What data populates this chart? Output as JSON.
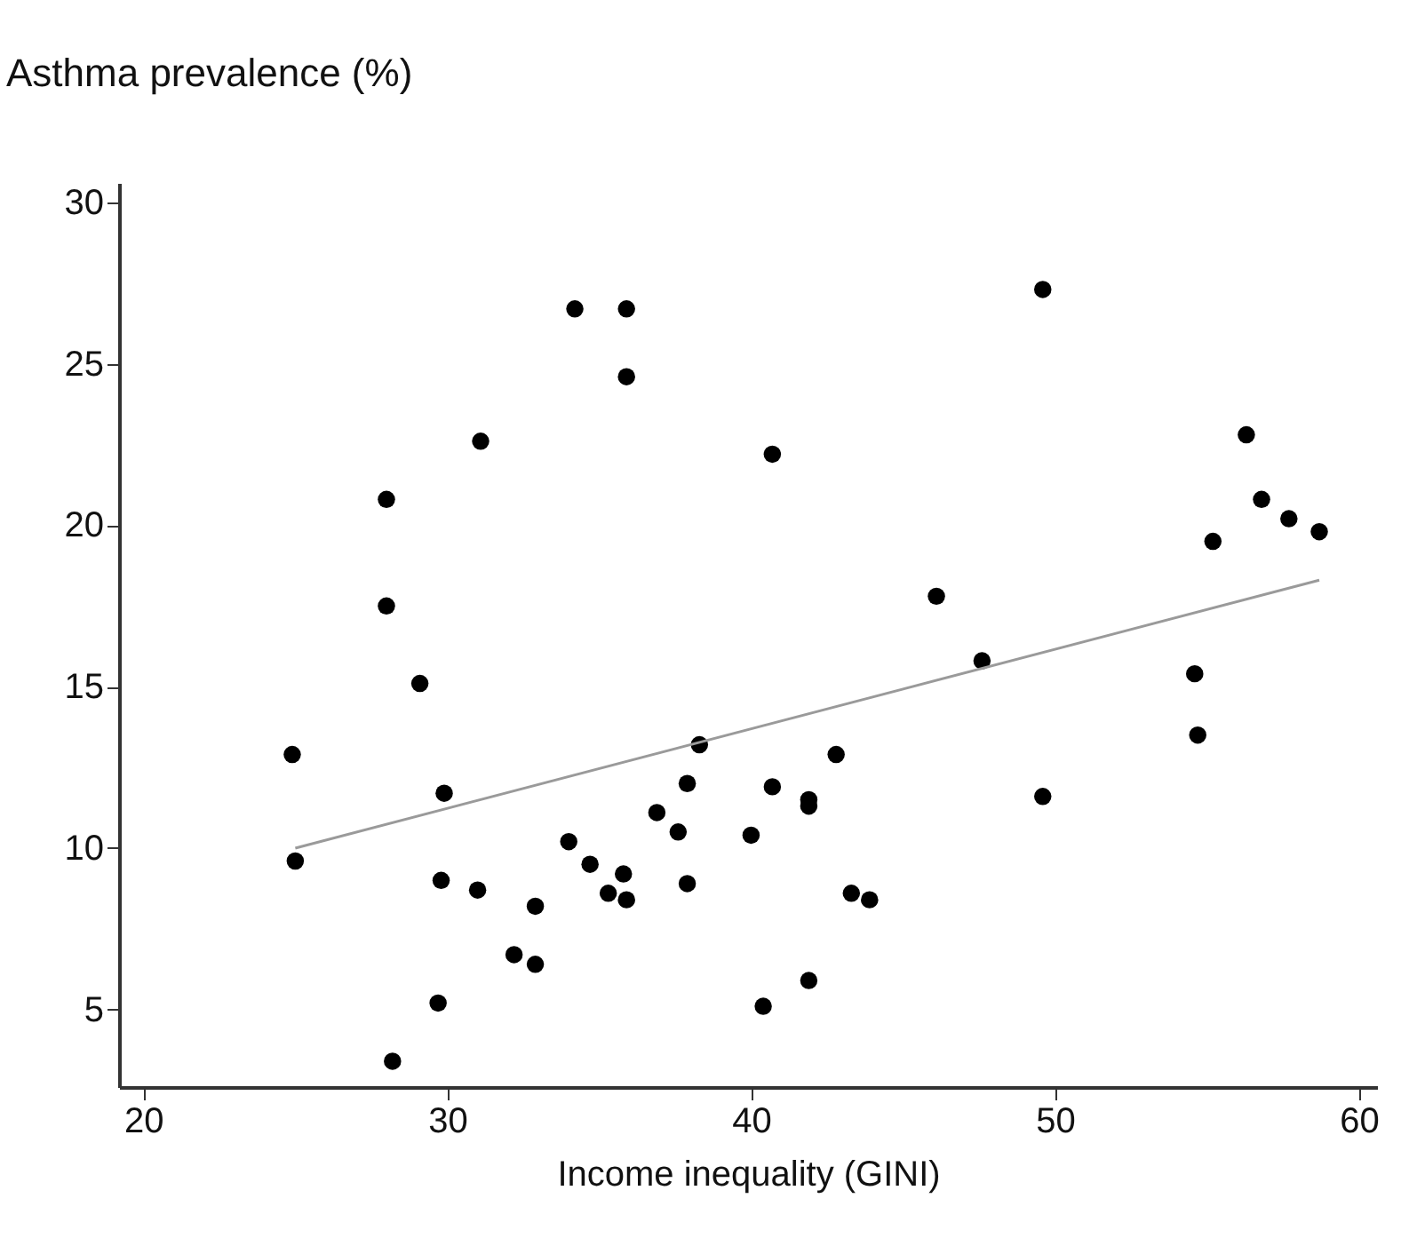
{
  "chart_data": {
    "type": "scatter",
    "xlabel": "Income inequality (GINI)",
    "ylabel": "Asthma prevalence (%)",
    "xlim": [
      19.2,
      60.6
    ],
    "ylim": [
      2.6,
      30.6
    ],
    "xticks": [
      20,
      30,
      40,
      50,
      60
    ],
    "yticks": [
      5,
      10,
      15,
      20,
      25,
      30
    ],
    "grid": false,
    "series": [
      {
        "type": "scatter",
        "color": "#000000",
        "marker": "circle",
        "x": [
          24.9,
          25.0,
          28.0,
          28.0,
          29.1,
          31.1,
          34.2,
          35.9,
          35.9,
          29.9,
          29.8,
          31.0,
          32.9,
          32.2,
          32.9,
          29.7,
          28.2,
          34.0,
          34.7,
          35.8,
          35.3,
          35.9,
          36.9,
          37.6,
          37.9,
          38.3,
          37.9,
          40.0,
          40.4,
          40.7,
          40.7,
          41.9,
          41.9,
          42.8,
          43.3,
          43.9,
          41.9,
          46.1,
          47.6,
          49.6,
          49.6,
          54.6,
          54.7,
          55.2,
          56.3,
          56.8,
          57.7,
          58.7
        ],
        "values": [
          12.9,
          9.6,
          20.8,
          17.5,
          15.1,
          22.6,
          26.7,
          26.7,
          24.6,
          11.7,
          9.0,
          8.7,
          8.2,
          6.7,
          6.4,
          5.2,
          3.4,
          10.2,
          9.5,
          9.2,
          8.6,
          8.4,
          11.1,
          10.5,
          12.0,
          13.2,
          8.9,
          10.4,
          5.1,
          22.2,
          11.9,
          11.5,
          11.3,
          12.9,
          8.6,
          8.4,
          5.9,
          17.8,
          15.8,
          27.3,
          11.6,
          15.4,
          13.5,
          19.5,
          22.8,
          20.8,
          20.2,
          19.8
        ]
      },
      {
        "type": "line",
        "color": "#9a9a9a",
        "x": [
          25.0,
          58.7
        ],
        "values": [
          10.0,
          18.3
        ]
      }
    ]
  }
}
